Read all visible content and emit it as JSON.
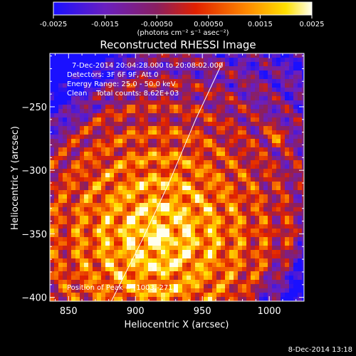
{
  "colorbar": {
    "ticks": [
      "-0.0025",
      "-0.0015",
      "-0.00050",
      "0.00050",
      "0.0015",
      "0.0025"
    ],
    "units": "(photons cm⁻² s⁻¹ asec⁻²)"
  },
  "chart_data": {
    "type": "heatmap",
    "title": "Reconstructed RHESSI Image",
    "xlabel": "Heliocentric X (arcsec)",
    "ylabel": "Heliocentric Y (arcsec)",
    "xlim": [
      836,
      1026
    ],
    "ylim": [
      -403,
      -208
    ],
    "x_ticks": [
      850,
      900,
      950,
      1000
    ],
    "y_ticks": [
      -250,
      -300,
      -350,
      -400
    ],
    "clim": [
      -0.0025,
      0.0025
    ],
    "colormap": "RHESSI blue-purple-red-yellow-white",
    "limb": [
      [
        882,
        -403
      ],
      [
        905,
        -355
      ],
      [
        925,
        -310
      ],
      [
        945,
        -260
      ],
      [
        965,
        -215
      ]
    ],
    "peak": [
      1003,
      -271
    ],
    "annotations": [
      "7-Dec-2014 20:04:28.000 to 20:08:02.000",
      "Detectors: 3F 6F 9F, Att 0",
      "Energy Range: 25.0 - 50.0 keV",
      "Clean    Total counts: 8.62E+03",
      "Position of Peak = [1003,-271]"
    ]
  },
  "footer": {
    "timestamp": "8-Dec-2014 13:18"
  }
}
